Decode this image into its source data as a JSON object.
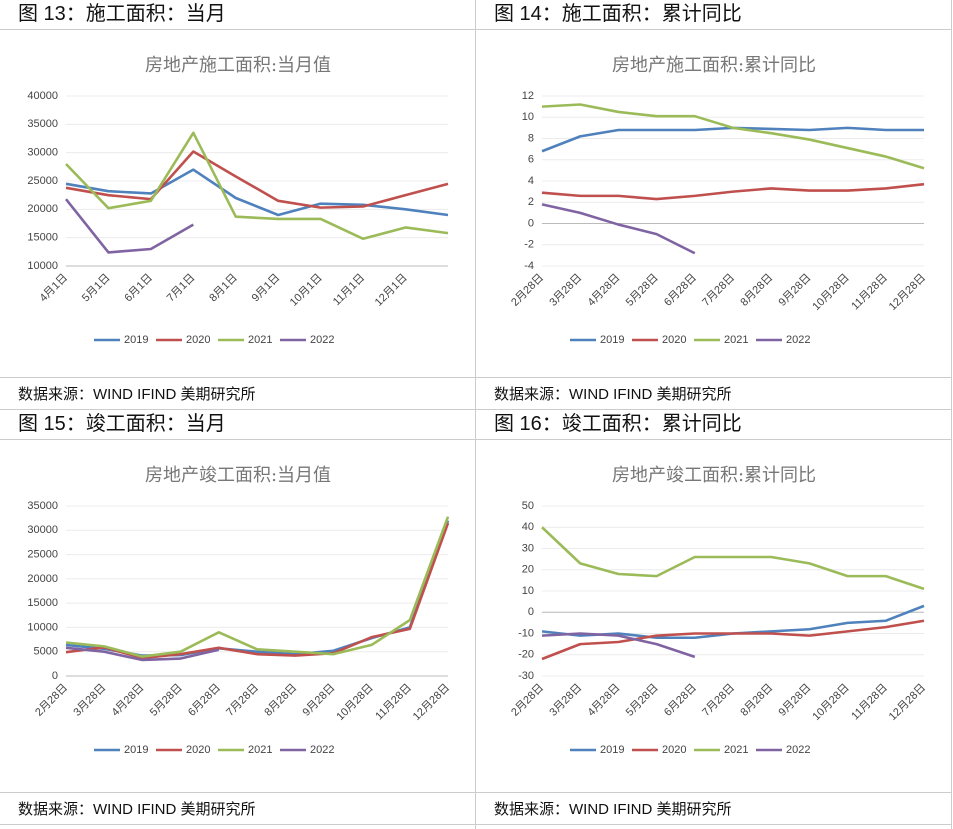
{
  "chart_data": [
    {
      "type": "line",
      "figure_label": "图 13：施工面积：当月",
      "title": "房地产施工面积:当月值",
      "source": "数据来源：WIND IFIND 美期研究所",
      "categories": [
        "4月1日",
        "5月1日",
        "6月1日",
        "7月1日",
        "8月1日",
        "9月1日",
        "10月1日",
        "11月1日",
        "12月1日",
        null
      ],
      "ylim": [
        10000,
        40000
      ],
      "yticks": [
        10000,
        15000,
        20000,
        25000,
        30000,
        35000,
        40000
      ],
      "series": [
        {
          "name": "2019",
          "color": "#4f81bd",
          "values": [
            24500,
            23200,
            22800,
            27000,
            22000,
            19000,
            21000,
            20800,
            20000,
            19000
          ]
        },
        {
          "name": "2020",
          "color": "#c0504d",
          "values": [
            23800,
            22500,
            21800,
            30200,
            25800,
            21500,
            20300,
            20500,
            22500,
            24500
          ]
        },
        {
          "name": "2021",
          "color": "#9bbb59",
          "values": [
            28000,
            20200,
            21500,
            33500,
            18700,
            18300,
            18300,
            14800,
            16800,
            15800
          ]
        },
        {
          "name": "2022",
          "color": "#8064a2",
          "values": [
            21800,
            12400,
            13000,
            17300,
            null,
            null,
            null,
            null,
            null,
            null
          ]
        }
      ]
    },
    {
      "type": "line",
      "figure_label": "图 14：施工面积：累计同比",
      "title": "房地产施工面积:累计同比",
      "source": "数据来源：WIND IFIND 美期研究所",
      "categories": [
        "2月28日",
        "3月28日",
        "4月28日",
        "5月28日",
        "6月28日",
        "7月28日",
        "8月28日",
        "9月28日",
        "10月28日",
        "11月28日",
        "12月28日"
      ],
      "ylim": [
        -4,
        12
      ],
      "yticks": [
        -4,
        -2,
        0,
        2,
        4,
        6,
        8,
        10,
        12
      ],
      "series": [
        {
          "name": "2019",
          "color": "#4f81bd",
          "values": [
            6.8,
            8.2,
            8.8,
            8.8,
            8.8,
            9.0,
            8.9,
            8.8,
            9.0,
            8.8,
            8.8
          ]
        },
        {
          "name": "2020",
          "color": "#c0504d",
          "values": [
            2.9,
            2.6,
            2.6,
            2.3,
            2.6,
            3.0,
            3.3,
            3.1,
            3.1,
            3.3,
            3.7
          ]
        },
        {
          "name": "2021",
          "color": "#9bbb59",
          "values": [
            11.0,
            11.2,
            10.5,
            10.1,
            10.1,
            9.0,
            8.5,
            7.9,
            7.1,
            6.3,
            5.2
          ]
        },
        {
          "name": "2022",
          "color": "#8064a2",
          "values": [
            1.8,
            1.0,
            -0.1,
            -1.0,
            -2.8,
            null,
            null,
            null,
            null,
            null,
            null
          ]
        }
      ]
    },
    {
      "type": "line",
      "figure_label": "图 15：竣工面积：当月",
      "title": "房地产竣工面积:当月值",
      "source": "数据来源：WIND IFIND 美期研究所",
      "categories": [
        "2月28日",
        "3月28日",
        "4月28日",
        "5月28日",
        "6月28日",
        "7月28日",
        "8月28日",
        "9月28日",
        "10月28日",
        "11月28日",
        "12月28日"
      ],
      "ylim": [
        0,
        35000
      ],
      "yticks": [
        0,
        5000,
        10000,
        15000,
        20000,
        25000,
        30000,
        35000
      ],
      "series": [
        {
          "name": "2019",
          "color": "#4f81bd",
          "values": [
            6400,
            5600,
            4200,
            4300,
            5700,
            5000,
            4500,
            5200,
            7800,
            10000,
            32000
          ]
        },
        {
          "name": "2020",
          "color": "#c0504d",
          "values": [
            4900,
            5900,
            3700,
            4500,
            5800,
            4500,
            4200,
            4700,
            8000,
            9700,
            31500
          ]
        },
        {
          "name": "2021",
          "color": "#9bbb59",
          "values": [
            6900,
            6100,
            4000,
            5000,
            9000,
            5500,
            5000,
            4500,
            6400,
            11500,
            32800
          ]
        },
        {
          "name": "2022",
          "color": "#8064a2",
          "values": [
            5800,
            5000,
            3300,
            3600,
            5400,
            null,
            null,
            null,
            null,
            null,
            null
          ]
        }
      ]
    },
    {
      "type": "line",
      "figure_label": "图 16：竣工面积：累计同比",
      "title": "房地产竣工面积:累计同比",
      "source": "数据来源：WIND IFIND 美期研究所",
      "categories": [
        "2月28日",
        "3月28日",
        "4月28日",
        "5月28日",
        "6月28日",
        "7月28日",
        "8月28日",
        "9月28日",
        "10月28日",
        "11月28日",
        "12月28日"
      ],
      "ylim": [
        -30,
        50
      ],
      "yticks": [
        -30,
        -20,
        -10,
        0,
        10,
        20,
        30,
        40,
        50
      ],
      "series": [
        {
          "name": "2019",
          "color": "#4f81bd",
          "values": [
            -9,
            -11,
            -10,
            -12,
            -12,
            -10,
            -9,
            -8,
            -5,
            -4,
            3
          ]
        },
        {
          "name": "2020",
          "color": "#c0504d",
          "values": [
            -22,
            -15,
            -14,
            -11,
            -10,
            -10,
            -10,
            -11,
            -9,
            -7,
            -4
          ]
        },
        {
          "name": "2021",
          "color": "#9bbb59",
          "values": [
            40,
            23,
            18,
            17,
            26,
            26,
            26,
            23,
            17,
            17,
            11
          ]
        },
        {
          "name": "2022",
          "color": "#8064a2",
          "values": [
            -11,
            -10,
            -11,
            -15,
            -21,
            null,
            null,
            null,
            null,
            null,
            null
          ]
        }
      ]
    }
  ]
}
